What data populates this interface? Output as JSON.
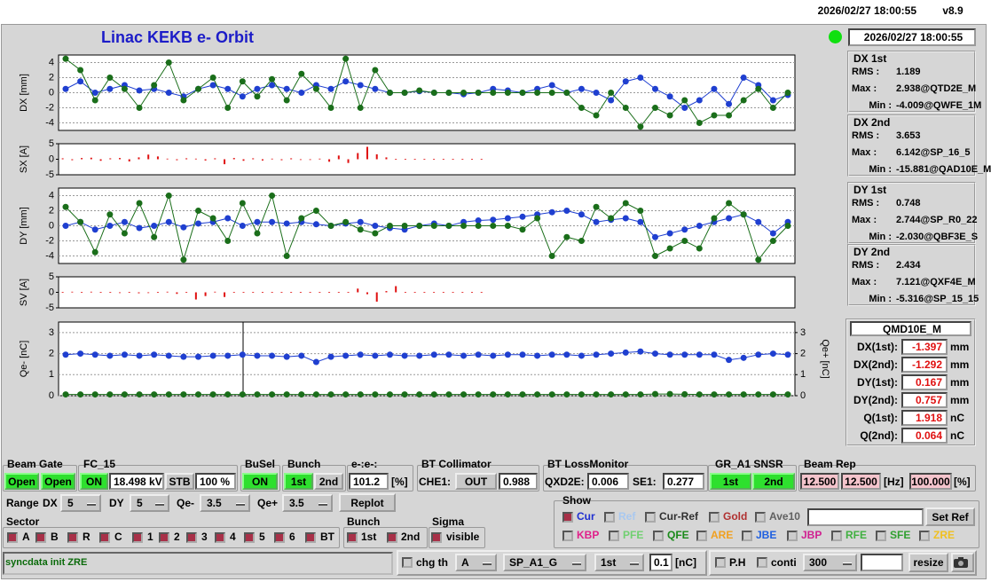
{
  "header": {
    "datetime": "2026/02/27 18:00:55",
    "version": "v8.9"
  },
  "title": "Linac KEKB e- Orbit",
  "status_time": "2026/02/27 18:00:55",
  "chart_data": [
    {
      "type": "line",
      "y_label": "DX [mm]",
      "ylim": [
        -5,
        5
      ],
      "yticks": [
        -4,
        -2,
        0,
        2,
        4
      ],
      "grid": true,
      "series": [
        {
          "name": "1st",
          "color": "#1f3fd0",
          "values": [
            0.5,
            1.5,
            0,
            0.5,
            1,
            0.3,
            0.5,
            0,
            -0.5,
            0.5,
            1,
            0.5,
            -0.5,
            0.5,
            1,
            0.5,
            0,
            1,
            0.5,
            1.5,
            1,
            0.5,
            0,
            0,
            0.2,
            0,
            0,
            -0.2,
            0,
            0.5,
            0.3,
            0,
            0.5,
            1,
            0,
            0.5,
            0,
            -1,
            1.5,
            2,
            0.5,
            -0.5,
            -2,
            -1,
            0.5,
            -1.5,
            2,
            1,
            -1,
            -0.3
          ]
        },
        {
          "name": "2nd",
          "color": "#1a6e1a",
          "values": [
            4.5,
            3,
            -1,
            2,
            0.5,
            -2,
            1,
            4,
            -1,
            0.5,
            2,
            -2,
            1.5,
            -0.5,
            1.8,
            -1,
            2.5,
            0.5,
            -2,
            4.5,
            -2,
            3,
            0,
            0,
            0.3,
            0,
            0,
            0,
            0,
            0,
            0,
            0,
            0,
            0,
            0,
            -2,
            -3,
            0,
            -2,
            -4.5,
            -2,
            -3,
            -1,
            -4,
            -3,
            -3,
            -1,
            0.5,
            -2,
            0
          ]
        }
      ]
    },
    {
      "type": "bar",
      "y_label": "SX [A]",
      "ylim": [
        -5,
        5
      ],
      "yticks": [
        -5,
        0,
        5
      ],
      "grid": false,
      "series": [
        {
          "name": "SX",
          "color": "#e01010",
          "values": [
            0.3,
            -0.3,
            0.4,
            0.5,
            -0.5,
            0.3,
            0.4,
            -0.7,
            0.6,
            1.5,
            0.9,
            0.2,
            -0.3,
            0.3,
            0.2,
            -0.4,
            0.3,
            -1.6,
            0.4,
            -0.5,
            0.3,
            -0.4,
            0.2,
            -0.3,
            0.3,
            0,
            0,
            0.2,
            -0.8,
            1.2,
            -1.2,
            2,
            4,
            1.6,
            0.6,
            0.1,
            0.1,
            0.1,
            0.1,
            0.1,
            0.1,
            0.1,
            0.1,
            0.1,
            0.1
          ]
        }
      ]
    },
    {
      "type": "line",
      "y_label": "DY [mm]",
      "ylim": [
        -5,
        5
      ],
      "yticks": [
        -4,
        -2,
        0,
        2,
        4
      ],
      "grid": true,
      "series": [
        {
          "name": "1st",
          "color": "#1f3fd0",
          "values": [
            0,
            0.5,
            -0.5,
            0,
            0.5,
            -0.3,
            0,
            0.5,
            -0.2,
            0.3,
            0.5,
            1,
            0,
            0.5,
            0.5,
            0.3,
            0.5,
            0.2,
            0,
            0.3,
            0.5,
            0,
            -0.3,
            -0.5,
            0,
            0.3,
            0,
            0.5,
            0.7,
            0.8,
            1,
            1.2,
            1.5,
            1.8,
            2,
            1.5,
            0.5,
            0.8,
            1,
            0.5,
            -1.5,
            -1,
            -0.5,
            0,
            0.5,
            1,
            1.5,
            0.5,
            -1,
            0.5
          ]
        },
        {
          "name": "2nd",
          "color": "#1a6e1a",
          "values": [
            2.5,
            0.5,
            -3.5,
            1.5,
            -1,
            3,
            -1.5,
            4,
            -4.5,
            2,
            1,
            -2,
            3,
            -1,
            4,
            -4,
            1,
            2,
            0,
            0.5,
            -0.5,
            -1,
            0,
            0,
            0,
            0,
            0,
            0,
            0,
            0,
            0,
            -0.5,
            1,
            -4,
            -1.5,
            -2,
            2.5,
            1,
            3,
            2,
            -4,
            -3,
            -2,
            -3,
            1,
            3,
            1.5,
            -4.5,
            -2,
            0
          ]
        }
      ]
    },
    {
      "type": "bar",
      "y_label": "SV [A]",
      "ylim": [
        -5,
        5
      ],
      "yticks": [
        -5,
        0,
        5
      ],
      "grid": false,
      "series": [
        {
          "name": "SV",
          "color": "#e01010",
          "values": [
            0.1,
            0.2,
            0.1,
            0.2,
            0.1,
            0.1,
            -0.2,
            0.1,
            -0.3,
            -0.2,
            0.1,
            0.2,
            -0.5,
            0.1,
            -2.3,
            -1.2,
            0.2,
            -1.5,
            0.1,
            0.1,
            0.1,
            0.1,
            0.1,
            0.1,
            0.1,
            0.1,
            0.1,
            0.1,
            0.1,
            0.1,
            0.1,
            1.2,
            -0.6,
            -3,
            0.4,
            2,
            0.1,
            0.1,
            0.1,
            0.1,
            0.1,
            0.1,
            0.1,
            0.1,
            0.1
          ]
        }
      ]
    },
    {
      "type": "line",
      "y_label": "Qe- [nC]",
      "y2_label": "Qe+ [nC]",
      "ylim": [
        0,
        3.5
      ],
      "yticks": [
        0,
        1,
        2,
        3
      ],
      "y2lim": [
        0,
        3.5
      ],
      "y2ticks": [
        0,
        1,
        2,
        3
      ],
      "grid": true,
      "series": [
        {
          "name": "Qe-",
          "color": "#1f3fd0",
          "values": [
            1.95,
            2,
            1.95,
            1.9,
            1.95,
            1.9,
            1.95,
            1.9,
            1.85,
            1.85,
            1.9,
            1.9,
            1.95,
            1.9,
            1.9,
            1.85,
            1.9,
            1.6,
            1.85,
            1.9,
            1.95,
            1.9,
            1.95,
            1.9,
            1.9,
            1.95,
            1.95,
            1.9,
            1.95,
            1.9,
            1.95,
            1.95,
            1.9,
            1.95,
            1.95,
            1.9,
            1.95,
            2,
            2.05,
            2.1,
            2,
            1.95,
            1.95,
            1.95,
            1.95,
            1.7,
            1.8,
            1.95,
            2,
            1.95
          ]
        },
        {
          "name": "Qe+",
          "color": "#1a6e1a",
          "axis": "y2",
          "values": [
            0.06,
            0.06,
            0.06,
            0.06,
            0.06,
            0.06,
            0.06,
            0.06,
            0.06,
            0.06,
            0.06,
            0.06,
            0.06,
            0.06,
            0.06,
            0.06,
            0.06,
            0.06,
            0.06,
            0.06,
            0.06,
            0.06,
            0.06,
            0.06,
            0.06,
            0.06,
            0.06,
            0.06,
            0.06,
            0.06,
            0.06,
            0.06,
            0.06,
            0.06,
            0.06,
            0.06,
            0.06,
            0.06,
            0.06,
            0.06,
            0.08,
            0.08,
            0.07,
            0.06,
            0.06,
            0.06,
            0.06,
            0.06,
            0.06,
            0.06
          ]
        }
      ]
    }
  ],
  "stats": [
    {
      "title": "DX 1st",
      "rows": [
        [
          "RMS :",
          "1.189"
        ],
        [
          "Max :",
          "2.938@QTD2E_M"
        ],
        [
          "Min :",
          "-4.009@QWFE_1M"
        ]
      ]
    },
    {
      "title": "DX 2nd",
      "rows": [
        [
          "RMS :",
          "3.653"
        ],
        [
          "Max :",
          "6.142@SP_16_5"
        ],
        [
          "Min :",
          "-15.881@QAD10E_M"
        ]
      ]
    },
    {
      "title": "DY 1st",
      "rows": [
        [
          "RMS :",
          "0.748"
        ],
        [
          "Max :",
          "2.744@SP_R0_22"
        ],
        [
          "Min :",
          "-2.030@QBF3E_S"
        ]
      ]
    },
    {
      "title": "DY 2nd",
      "rows": [
        [
          "RMS :",
          "2.434"
        ],
        [
          "Max :",
          "7.121@QXF4E_M"
        ],
        [
          "Min :",
          "-5.316@SP_15_15"
        ]
      ]
    }
  ],
  "element": {
    "name": "QMD10E_M",
    "rows": [
      [
        "DX(1st):",
        "-1.397",
        "mm"
      ],
      [
        "DX(2nd):",
        "-1.292",
        "mm"
      ],
      [
        "DY(1st):",
        "0.167",
        "mm"
      ],
      [
        "DY(2nd):",
        "0.757",
        "mm"
      ],
      [
        "Q(1st):",
        "1.918",
        "nC"
      ],
      [
        "Q(2nd):",
        "0.064",
        "nC"
      ]
    ]
  },
  "controls": {
    "beam_gate": {
      "label": "Beam Gate",
      "buttons": [
        "Open",
        "Open"
      ]
    },
    "fc": {
      "label": "FC_15",
      "state": "ON",
      "voltage": "18.498 kV",
      "mode": "STB",
      "percent": "100 %"
    },
    "busel": {
      "label": "BuSel",
      "state": "ON"
    },
    "bunch_sel": {
      "label": "Bunch",
      "buttons": [
        "1st",
        "2nd"
      ]
    },
    "ratio": {
      "label": "e-:e-:",
      "value": "101.2",
      "unit": "[%]"
    },
    "collimator": {
      "label": "BT Collimator",
      "name": "CHE1:",
      "state": "OUT",
      "value": "0.988"
    },
    "loss": {
      "label": "BT LossMonitor",
      "items": [
        [
          "QXD2E:",
          "0.006"
        ],
        [
          "SE1:",
          "0.277"
        ]
      ]
    },
    "sensor": {
      "label": "GR_A1 SNSR",
      "buttons": [
        "1st",
        "2nd"
      ]
    },
    "rep": {
      "label": "Beam Rep",
      "values": [
        "12.500",
        "12.500"
      ],
      "unit": "[Hz]",
      "percent": "100.000",
      "percent_unit": "[%]"
    },
    "range": {
      "label": "Range",
      "items": [
        [
          "DX",
          "5"
        ],
        [
          "DY",
          "5"
        ],
        [
          "Qe-",
          "3.5"
        ],
        [
          "Qe+",
          "3.5"
        ]
      ],
      "button": "Replot"
    },
    "show": {
      "label": "Show",
      "button": "Set Ref",
      "row1": [
        {
          "text": "Cur",
          "checked": true,
          "color": "#2030d0"
        },
        {
          "text": "Ref",
          "checked": false,
          "color": "#a8c8f0"
        },
        {
          "text": "Cur-Ref",
          "checked": false,
          "color": "#303030"
        },
        {
          "text": "Gold",
          "checked": false,
          "color": "#b03030"
        },
        {
          "text": "Ave10",
          "checked": false,
          "color": "#606060"
        }
      ],
      "row2": [
        {
          "text": "KBP",
          "checked": false,
          "color": "#e0208a"
        },
        {
          "text": "PFE",
          "checked": false,
          "color": "#70d070"
        },
        {
          "text": "QFE",
          "checked": false,
          "color": "#1a8a1a"
        },
        {
          "text": "ARE",
          "checked": false,
          "color": "#f0a020"
        },
        {
          "text": "JBE",
          "checked": false,
          "color": "#2060e0"
        },
        {
          "text": "JBP",
          "checked": false,
          "color": "#d02090"
        },
        {
          "text": "RFE",
          "checked": false,
          "color": "#40b040"
        },
        {
          "text": "SFE",
          "checked": false,
          "color": "#30a030"
        },
        {
          "text": "ZRE",
          "checked": false,
          "color": "#f0c020"
        }
      ]
    },
    "sector": {
      "label": "Sector",
      "items": [
        "A",
        "B",
        "R",
        "C",
        "1",
        "2",
        "3",
        "4",
        "5",
        "6",
        "BT"
      ]
    },
    "bunch": {
      "label": "Bunch",
      "items": [
        "1st",
        "2nd"
      ]
    },
    "sigma": {
      "label": "Sigma",
      "items": [
        "visible"
      ]
    }
  },
  "status": {
    "message": "syncdata init ZRE",
    "chg_th": "chg th",
    "sel_a": "A",
    "element": "SP_A1_G",
    "bunch": "1st",
    "threshold": "0.1",
    "unit": "[nC]",
    "ph": "P.H",
    "conti": "conti",
    "count": "300",
    "resize": "resize"
  }
}
